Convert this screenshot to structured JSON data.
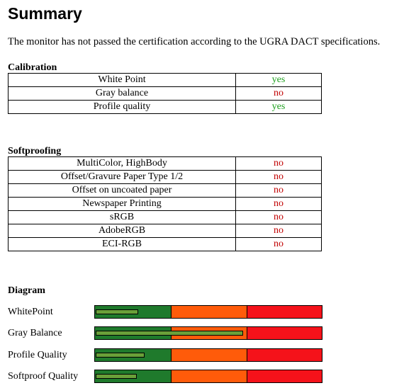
{
  "title": "Summary",
  "intro": "The monitor has not passed the certification according to the UGRA DACT specifications.",
  "calibration": {
    "heading": "Calibration",
    "rows": [
      {
        "label": "White Point",
        "value": "yes",
        "status": "yes"
      },
      {
        "label": "Gray balance",
        "value": "no",
        "status": "no"
      },
      {
        "label": "Profile quality",
        "value": "yes",
        "status": "yes"
      }
    ]
  },
  "softproofing": {
    "heading": "Softproofing",
    "rows": [
      {
        "label": "MultiColor, HighBody",
        "value": "no",
        "status": "no"
      },
      {
        "label": "Offset/Gravure Paper Type 1/2",
        "value": "no",
        "status": "no"
      },
      {
        "label": "Offset on uncoated paper",
        "value": "no",
        "status": "no"
      },
      {
        "label": "Newspaper Printing",
        "value": "no",
        "status": "no"
      },
      {
        "label": "sRGB",
        "value": "no",
        "status": "no"
      },
      {
        "label": "AdobeRGB",
        "value": "no",
        "status": "no"
      },
      {
        "label": "ECI-RGB",
        "value": "no",
        "status": "no"
      }
    ]
  },
  "diagram": {
    "heading": "Diagram",
    "items": [
      {
        "label": "WhitePoint",
        "level": 0.18
      },
      {
        "label": "Gray Balance",
        "level": 0.645
      },
      {
        "label": "Profile Quality",
        "level": 0.21
      },
      {
        "label": "Softproof Quality",
        "level": 0.175
      }
    ]
  }
}
